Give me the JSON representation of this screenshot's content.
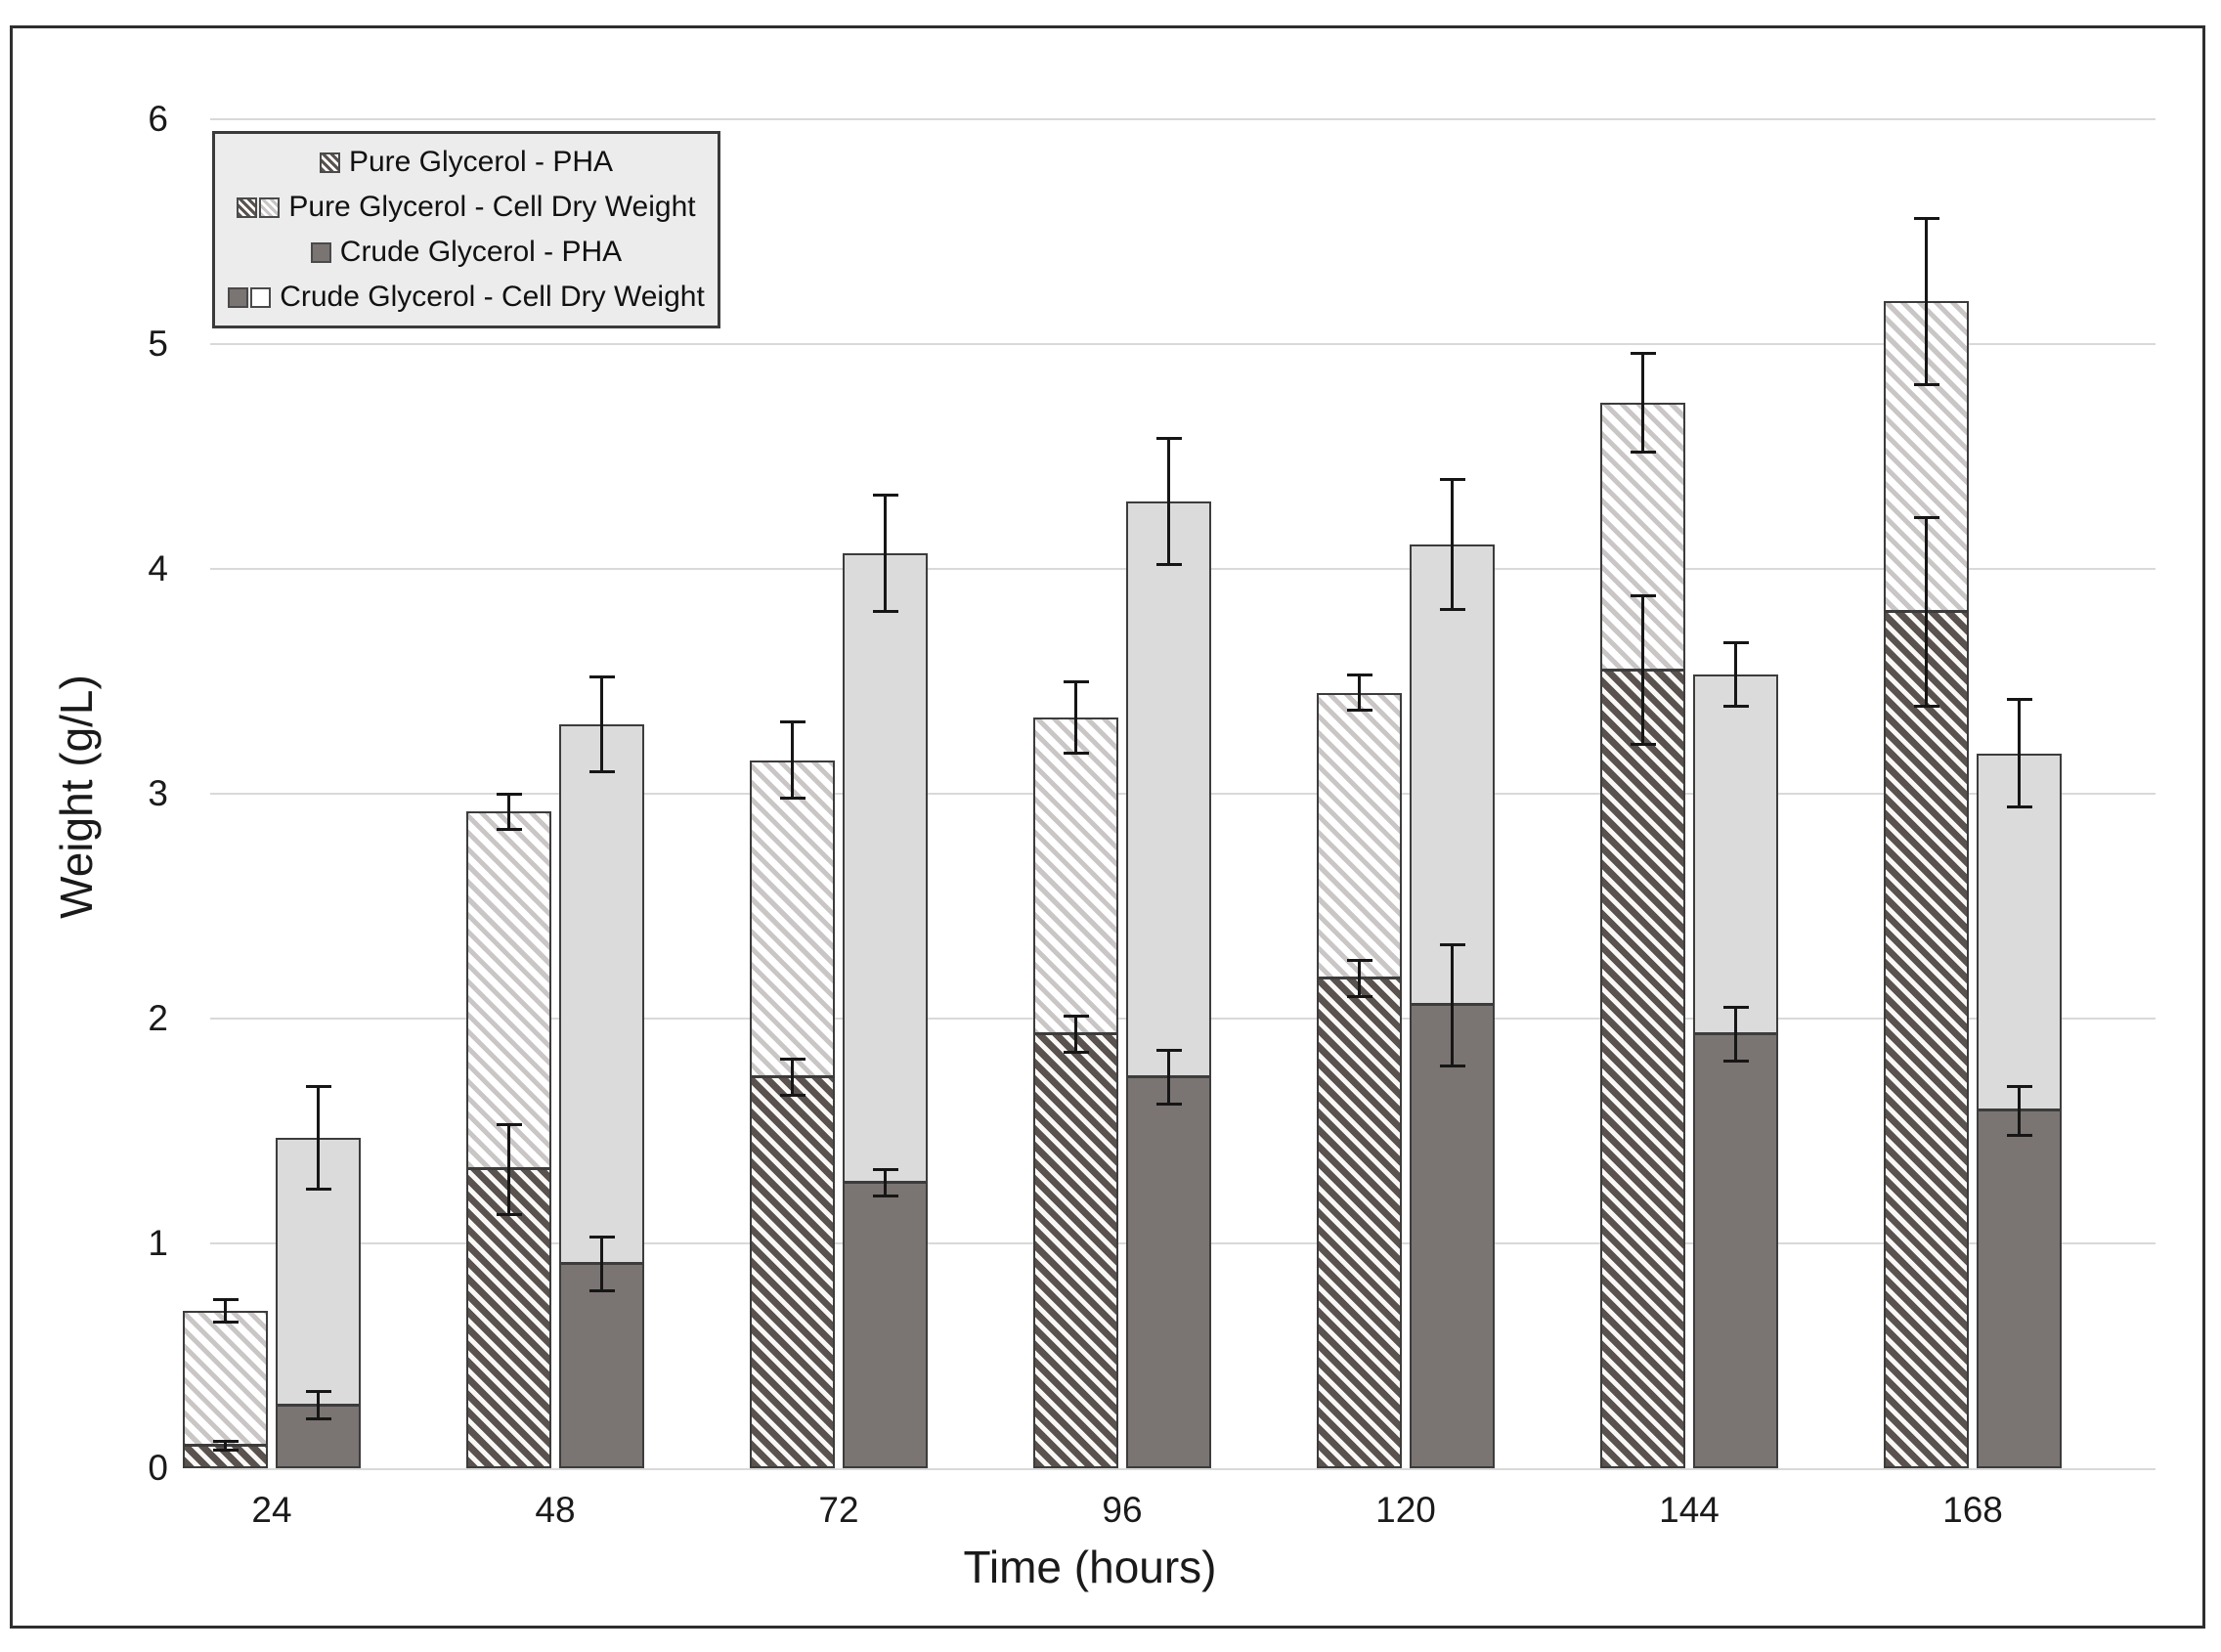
{
  "colors": {
    "crude_pha_dark": "#7a7472",
    "crude_cdw_light": "#dbdbdb",
    "pure_pha_hatch": "#5a524f",
    "pure_cdw_hatch": "#c9c6c5",
    "bar_stroke": "#3c3c3c",
    "gridline": "#d9d9d9",
    "legend_background": "#ececec"
  },
  "chart_data": {
    "type": "bar",
    "stacked": true,
    "title": "",
    "xlabel": "Time (hours)",
    "ylabel": "Weight (g/L)",
    "ylim": [
      0,
      6
    ],
    "yticks": [
      0,
      1,
      2,
      3,
      4,
      5,
      6
    ],
    "grid": "horizontal",
    "legend_position": "top-left",
    "categories": [
      "24",
      "48",
      "72",
      "96",
      "120",
      "144",
      "168"
    ],
    "series": [
      {
        "name": "Pure Glycerol - PHA",
        "role": "bottom segment of Pure Glycerol bar",
        "values": [
          0.1,
          1.33,
          1.74,
          1.93,
          2.18,
          3.55,
          3.81
        ],
        "errors": [
          0.02,
          0.2,
          0.08,
          0.08,
          0.08,
          0.33,
          0.42
        ]
      },
      {
        "name": "Pure Glycerol - Cell Dry Weight",
        "role": "top segment of Pure Glycerol bar",
        "values": [
          0.6,
          1.59,
          1.41,
          1.41,
          1.27,
          1.19,
          1.38
        ],
        "totals": [
          0.7,
          2.92,
          3.15,
          3.34,
          3.45,
          4.74,
          5.19
        ],
        "errors": [
          0.05,
          0.08,
          0.17,
          0.16,
          0.08,
          0.22,
          0.37
        ]
      },
      {
        "name": "Crude Glycerol - PHA",
        "role": "bottom segment of Crude Glycerol bar",
        "values": [
          0.28,
          0.91,
          1.27,
          1.74,
          2.06,
          1.93,
          1.59
        ],
        "errors": [
          0.06,
          0.12,
          0.06,
          0.12,
          0.27,
          0.12,
          0.11
        ]
      },
      {
        "name": "Crude Glycerol - Cell Dry Weight",
        "role": "top segment of Crude Glycerol bar",
        "values": [
          1.19,
          2.4,
          2.8,
          2.56,
          2.05,
          1.6,
          1.59
        ],
        "totals": [
          1.47,
          3.31,
          4.07,
          4.3,
          4.11,
          3.53,
          3.18
        ],
        "errors": [
          0.23,
          0.21,
          0.26,
          0.28,
          0.29,
          0.14,
          0.24
        ]
      }
    ]
  }
}
